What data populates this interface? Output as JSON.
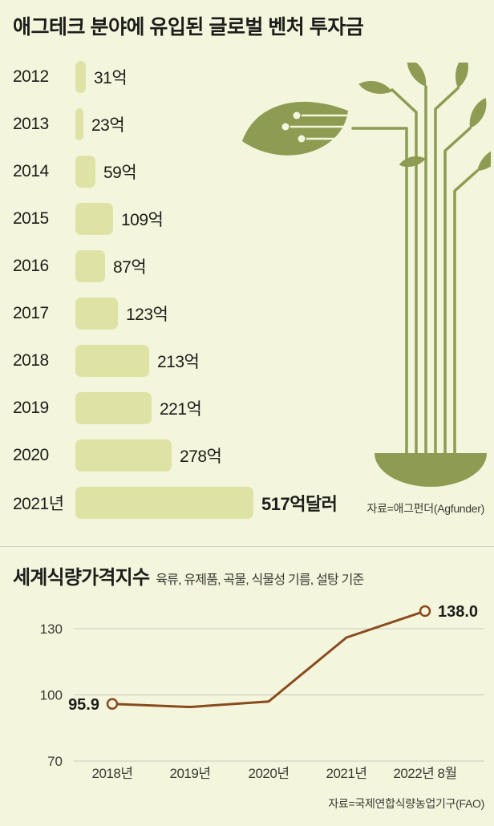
{
  "page": {
    "bg": "#f3f6dc",
    "illustration_color": "#8d9c52"
  },
  "section_investment": {
    "title": "애그테크 분야에 유입된 글로벌 벤처 투자금",
    "source": "자료=애그펀더(Agfunder)"
  },
  "section_food_index": {
    "title": "세계식량가격지수",
    "subtitle": "육류, 유제품, 곡물, 식물성 기름, 설탕 기준",
    "source": "자료=국제연합식량농업기구(FAO)"
  },
  "chart_data": [
    {
      "type": "bar",
      "orientation": "horizontal",
      "title": "애그테크 분야에 유입된 글로벌 벤처 투자금",
      "unit": "억 달러",
      "categories": [
        "2012",
        "2013",
        "2014",
        "2015",
        "2016",
        "2017",
        "2018",
        "2019",
        "2020",
        "2021년"
      ],
      "values": [
        31,
        23,
        59,
        109,
        87,
        123,
        213,
        221,
        278,
        517
      ],
      "value_labels": [
        "31억",
        "23억",
        "59억",
        "109억",
        "87억",
        "123억",
        "213억",
        "221억",
        "278억",
        "517억달러"
      ],
      "bar_color": "#dee3a5",
      "source": "자료=애그펀더(Agfunder)"
    },
    {
      "type": "line",
      "title": "세계식량가격지수",
      "subtitle": "육류, 유제품, 곡물, 식물성 기름, 설탕 기준",
      "x": [
        "2018년",
        "2019년",
        "2020년",
        "2021년",
        "2022년 8월"
      ],
      "values": [
        95.9,
        94.5,
        97.0,
        126.0,
        138.0
      ],
      "yticks": [
        70,
        100,
        130
      ],
      "ylim": [
        70,
        145
      ],
      "grid": "horizontal",
      "line_color": "#8a4a1e",
      "annotations": [
        {
          "x": "2018년",
          "value": 95.9,
          "label": "95.9"
        },
        {
          "x": "2022년 8월",
          "value": 138.0,
          "label": "138.0"
        }
      ],
      "source": "자료=국제연합식량농업기구(FAO)"
    }
  ]
}
